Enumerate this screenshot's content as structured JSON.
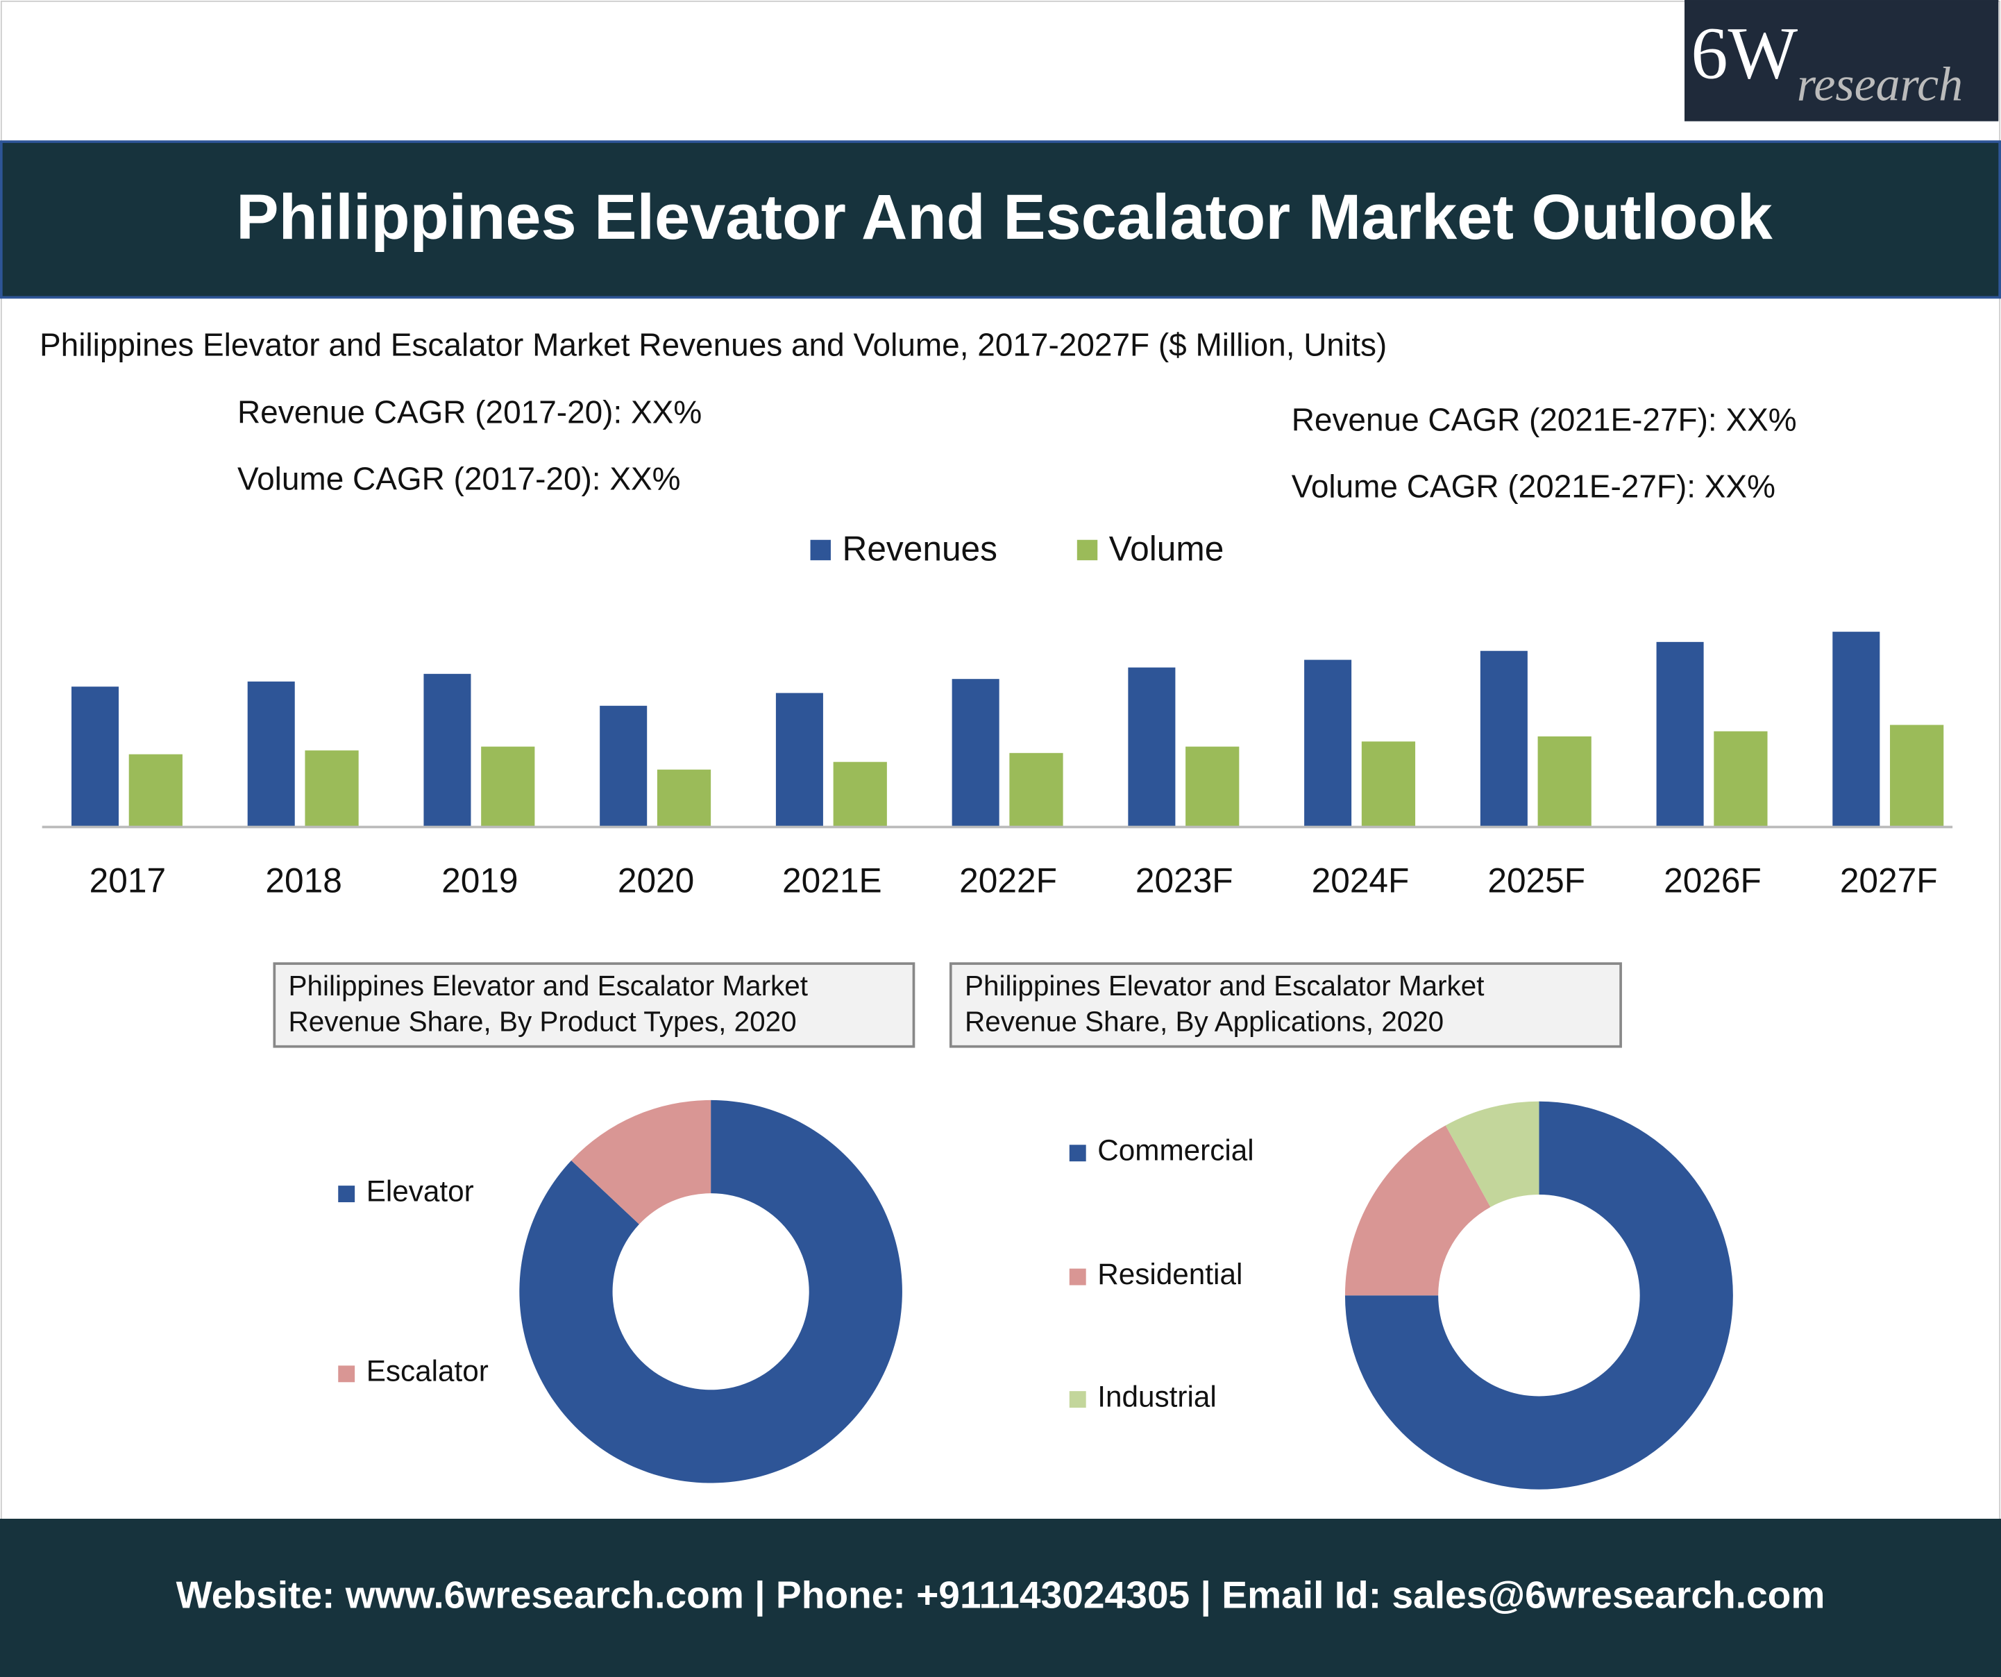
{
  "logo": {
    "main": "6W",
    "sub": "research"
  },
  "header": {
    "title": "Philippines Elevator And Escalator Market Outlook"
  },
  "footer": {
    "text": "Website: www.6wresearch.com | Phone: +911143024305 | Email Id: sales@6wresearch.com"
  },
  "chart_data": [
    {
      "type": "bar",
      "title": "Philippines Elevator and Escalator Market Revenues and Volume, 2017-2027F ($ Million, Units)",
      "annotations": [
        "Revenue CAGR (2017-20): XX%",
        "Volume CAGR (2017-20): XX%",
        "Revenue CAGR (2021E-27F): XX%",
        "Volume CAGR (2021E-27F): XX%"
      ],
      "categories": [
        "2017",
        "2018",
        "2019",
        "2020",
        "2021E",
        "2022F",
        "2023F",
        "2024F",
        "2025F",
        "2026F",
        "2027F"
      ],
      "series": [
        {
          "name": "Revenues",
          "color": "#2e5597",
          "values": [
            110,
            114,
            120,
            95,
            105,
            116,
            125,
            131,
            138,
            145,
            153
          ]
        },
        {
          "name": "Volume",
          "color": "#9bbb59",
          "values": [
            57,
            60,
            63,
            45,
            51,
            58,
            63,
            67,
            71,
            75,
            80
          ]
        }
      ],
      "ylim": [
        0,
        160
      ]
    },
    {
      "type": "donut",
      "title": [
        "Philippines Elevator and Escalator Market",
        "Revenue Share, By Product Types, 2020"
      ],
      "categories": [
        "Elevator",
        "Escalator"
      ],
      "values": [
        87,
        13
      ],
      "colors": [
        "#2e5597",
        "#d99694"
      ]
    },
    {
      "type": "donut",
      "title": [
        "Philippines Elevator and Escalator Market",
        "Revenue Share, By Applications, 2020"
      ],
      "categories": [
        "Commercial",
        "Residential",
        "Industrial"
      ],
      "values": [
        75,
        17,
        8
      ],
      "colors": [
        "#2e5597",
        "#d99694",
        "#c3d69b"
      ]
    }
  ]
}
